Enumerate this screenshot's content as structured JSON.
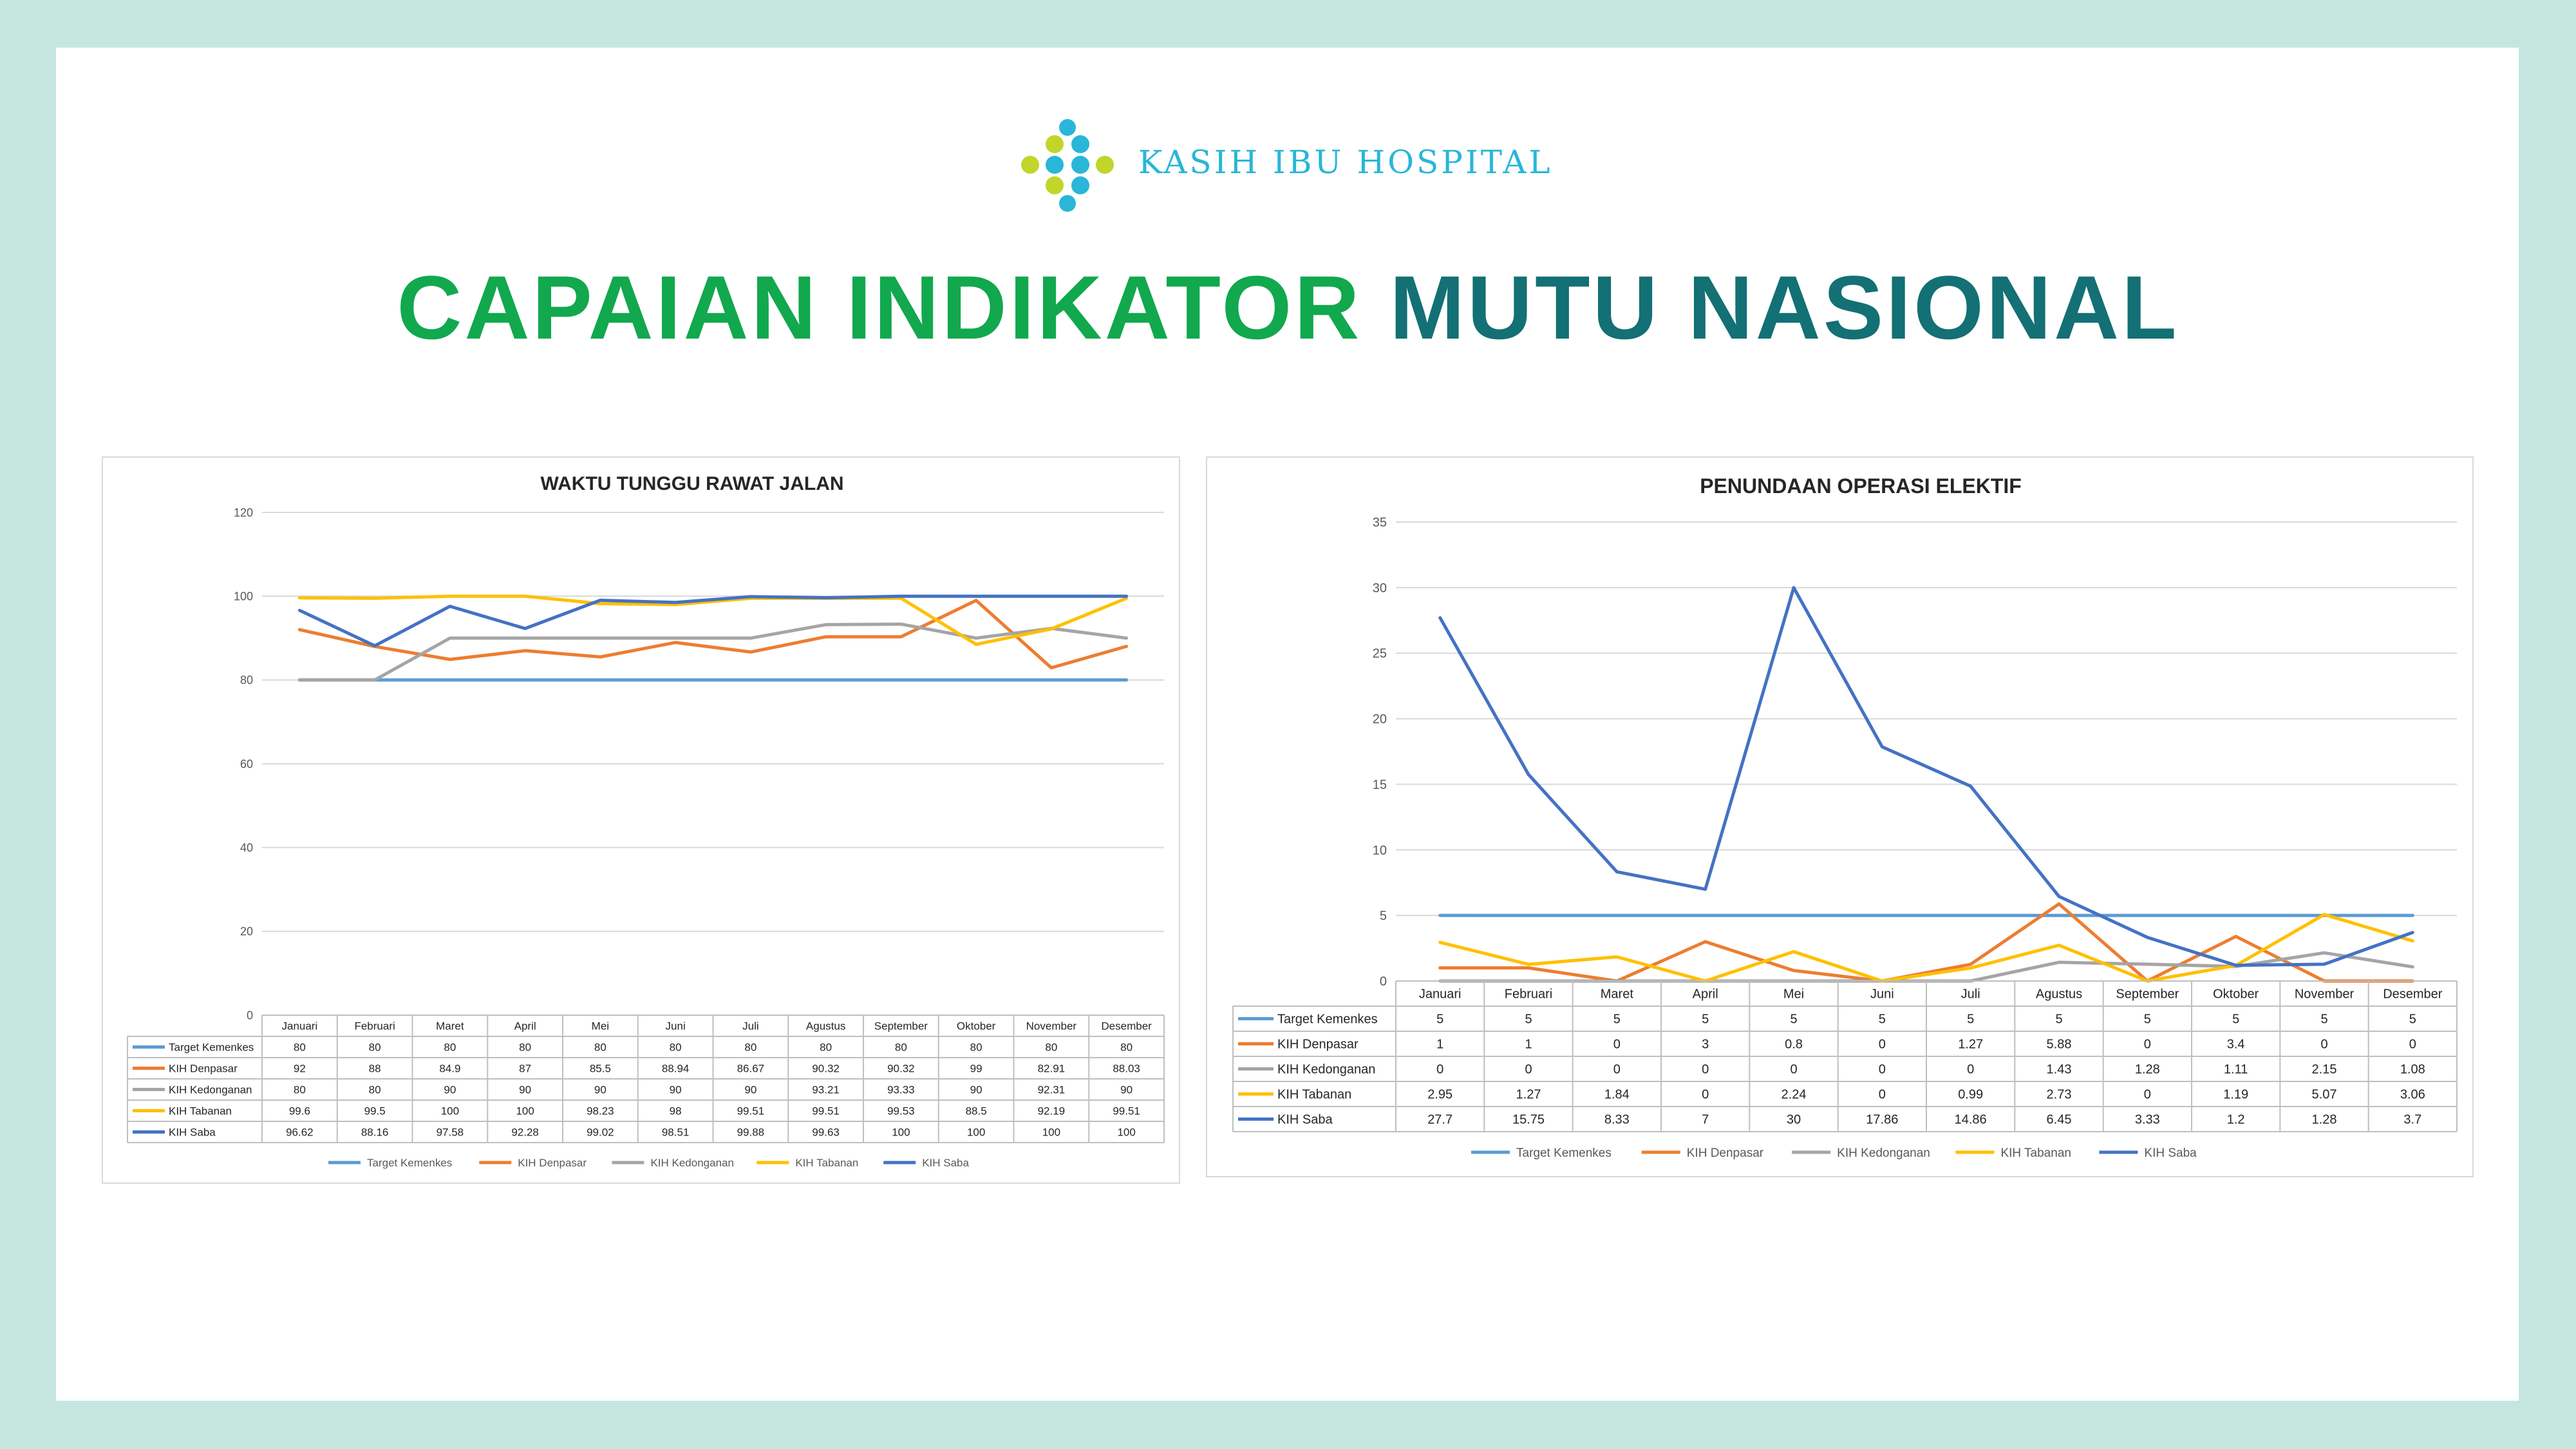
{
  "header": {
    "brand": "KASIH IBU HOSPITAL",
    "title_part1": "CAPAIAN INDIKATOR",
    "title_part2": "MUTU NASIONAL"
  },
  "colors": {
    "Target Kemenkes": "#5b9bd5",
    "KIH Denpasar": "#ed7d31",
    "KIH Kedonganan": "#a5a5a5",
    "KIH Tabanan": "#ffc000",
    "KIH Saba": "#4472c4"
  },
  "chart_data": [
    {
      "type": "line",
      "title": "WAKTU TUNGGU RAWAT JALAN",
      "categories": [
        "Januari",
        "Februari",
        "Maret",
        "April",
        "Mei",
        "Juni",
        "Juli",
        "Agustus",
        "September",
        "Oktober",
        "November",
        "Desember"
      ],
      "ylim": [
        0,
        120
      ],
      "yticks": [
        0,
        20,
        40,
        60,
        80,
        100,
        120
      ],
      "grid": true,
      "legend": "bottom",
      "series": [
        {
          "name": "Target Kemenkes",
          "values": [
            80,
            80,
            80,
            80,
            80,
            80,
            80,
            80,
            80,
            80,
            80,
            80
          ],
          "labels": [
            "80",
            "80",
            "80",
            "80",
            "80",
            "80",
            "80",
            "80",
            "80",
            "80",
            "80",
            "80"
          ]
        },
        {
          "name": "KIH Denpasar",
          "values": [
            92,
            88,
            84.9,
            87,
            85.5,
            88.94,
            86.67,
            90.32,
            90.32,
            99,
            82.91,
            88.03
          ],
          "labels": [
            "92",
            "88",
            "84.9",
            "87",
            "85.5",
            "88.94",
            "86.67",
            "90.32",
            "90.32",
            "99",
            "82.91",
            "88.03"
          ]
        },
        {
          "name": "KIH Kedonganan",
          "values": [
            80,
            80,
            90,
            90,
            90,
            90,
            90,
            93.21,
            93.33,
            90,
            92.31,
            90
          ],
          "labels": [
            "80",
            "80",
            "90",
            "90",
            "90",
            "90",
            "90",
            "93.21",
            "93.33",
            "90",
            "92.31",
            "90"
          ]
        },
        {
          "name": "KIH Tabanan",
          "values": [
            99.6,
            99.5,
            100,
            100,
            98.23,
            98,
            99.51,
            99.51,
            99.53,
            88.5,
            92.19,
            99.51
          ],
          "labels": [
            "99.6",
            "99.5",
            "100",
            "100",
            "98.23",
            "98",
            "99.51",
            "99.51",
            "99.53",
            "88.5",
            "92.19",
            "99.51"
          ]
        },
        {
          "name": "KIH Saba",
          "values": [
            96.62,
            88.16,
            97.58,
            92.28,
            99.02,
            98.51,
            99.88,
            99.63,
            100,
            100,
            100,
            100
          ],
          "labels": [
            "96.62",
            "88.16",
            "97.58",
            "92.28",
            "99.02",
            "98.51",
            "99.88",
            "99.63",
            "100",
            "100",
            "100",
            "100"
          ]
        }
      ]
    },
    {
      "type": "line",
      "title": "PENUNDAAN OPERASI ELEKTIF",
      "categories": [
        "Januari",
        "Februari",
        "Maret",
        "April",
        "Mei",
        "Juni",
        "Juli",
        "Agustus",
        "September",
        "Oktober",
        "November",
        "Desember"
      ],
      "ylim": [
        0,
        35
      ],
      "yticks": [
        0,
        5,
        10,
        15,
        20,
        25,
        30,
        35
      ],
      "grid": true,
      "legend": "bottom",
      "series": [
        {
          "name": "Target Kemenkes",
          "values": [
            5,
            5,
            5,
            5,
            5,
            5,
            5,
            5,
            5,
            5,
            5,
            5
          ],
          "labels": [
            "5",
            "5",
            "5",
            "5",
            "5",
            "5",
            "5",
            "5",
            "5",
            "5",
            "5",
            "5"
          ]
        },
        {
          "name": "KIH Denpasar",
          "values": [
            1,
            1,
            0,
            3,
            0.8,
            0,
            1.27,
            5.88,
            0,
            3.4,
            0,
            0
          ],
          "labels": [
            "1",
            "1",
            "0",
            "3",
            "0.8",
            "0",
            "1.27",
            "5.88",
            "0",
            "3.4",
            "0",
            "0"
          ]
        },
        {
          "name": "KIH Kedonganan",
          "values": [
            0,
            0,
            0,
            0,
            0,
            0,
            0,
            1.43,
            1.28,
            1.11,
            2.15,
            1.08
          ],
          "labels": [
            "0",
            "0",
            "0",
            "0",
            "0",
            "0",
            "0",
            "1.43",
            "1.28",
            "1.11",
            "2.15",
            "1.08"
          ]
        },
        {
          "name": "KIH Tabanan",
          "values": [
            2.95,
            1.27,
            1.84,
            0,
            2.24,
            0,
            0.99,
            2.73,
            0,
            1.19,
            5.07,
            3.06
          ],
          "labels": [
            "2.95",
            "1.27",
            "1.84",
            "0",
            "2.24",
            "0",
            "0.99",
            "2.73",
            "0",
            "1.19",
            "5.07",
            "3.06"
          ]
        },
        {
          "name": "KIH Saba",
          "values": [
            27.7,
            15.75,
            8.33,
            7,
            30,
            17.86,
            14.86,
            6.45,
            3.33,
            1.2,
            1.28,
            3.7
          ],
          "labels": [
            "27.7",
            "15.75",
            "8.33",
            "7",
            "30",
            "17.86",
            "14.86",
            "6.45",
            "3.33",
            "1.2",
            "1.28",
            "3.7"
          ]
        }
      ]
    }
  ]
}
